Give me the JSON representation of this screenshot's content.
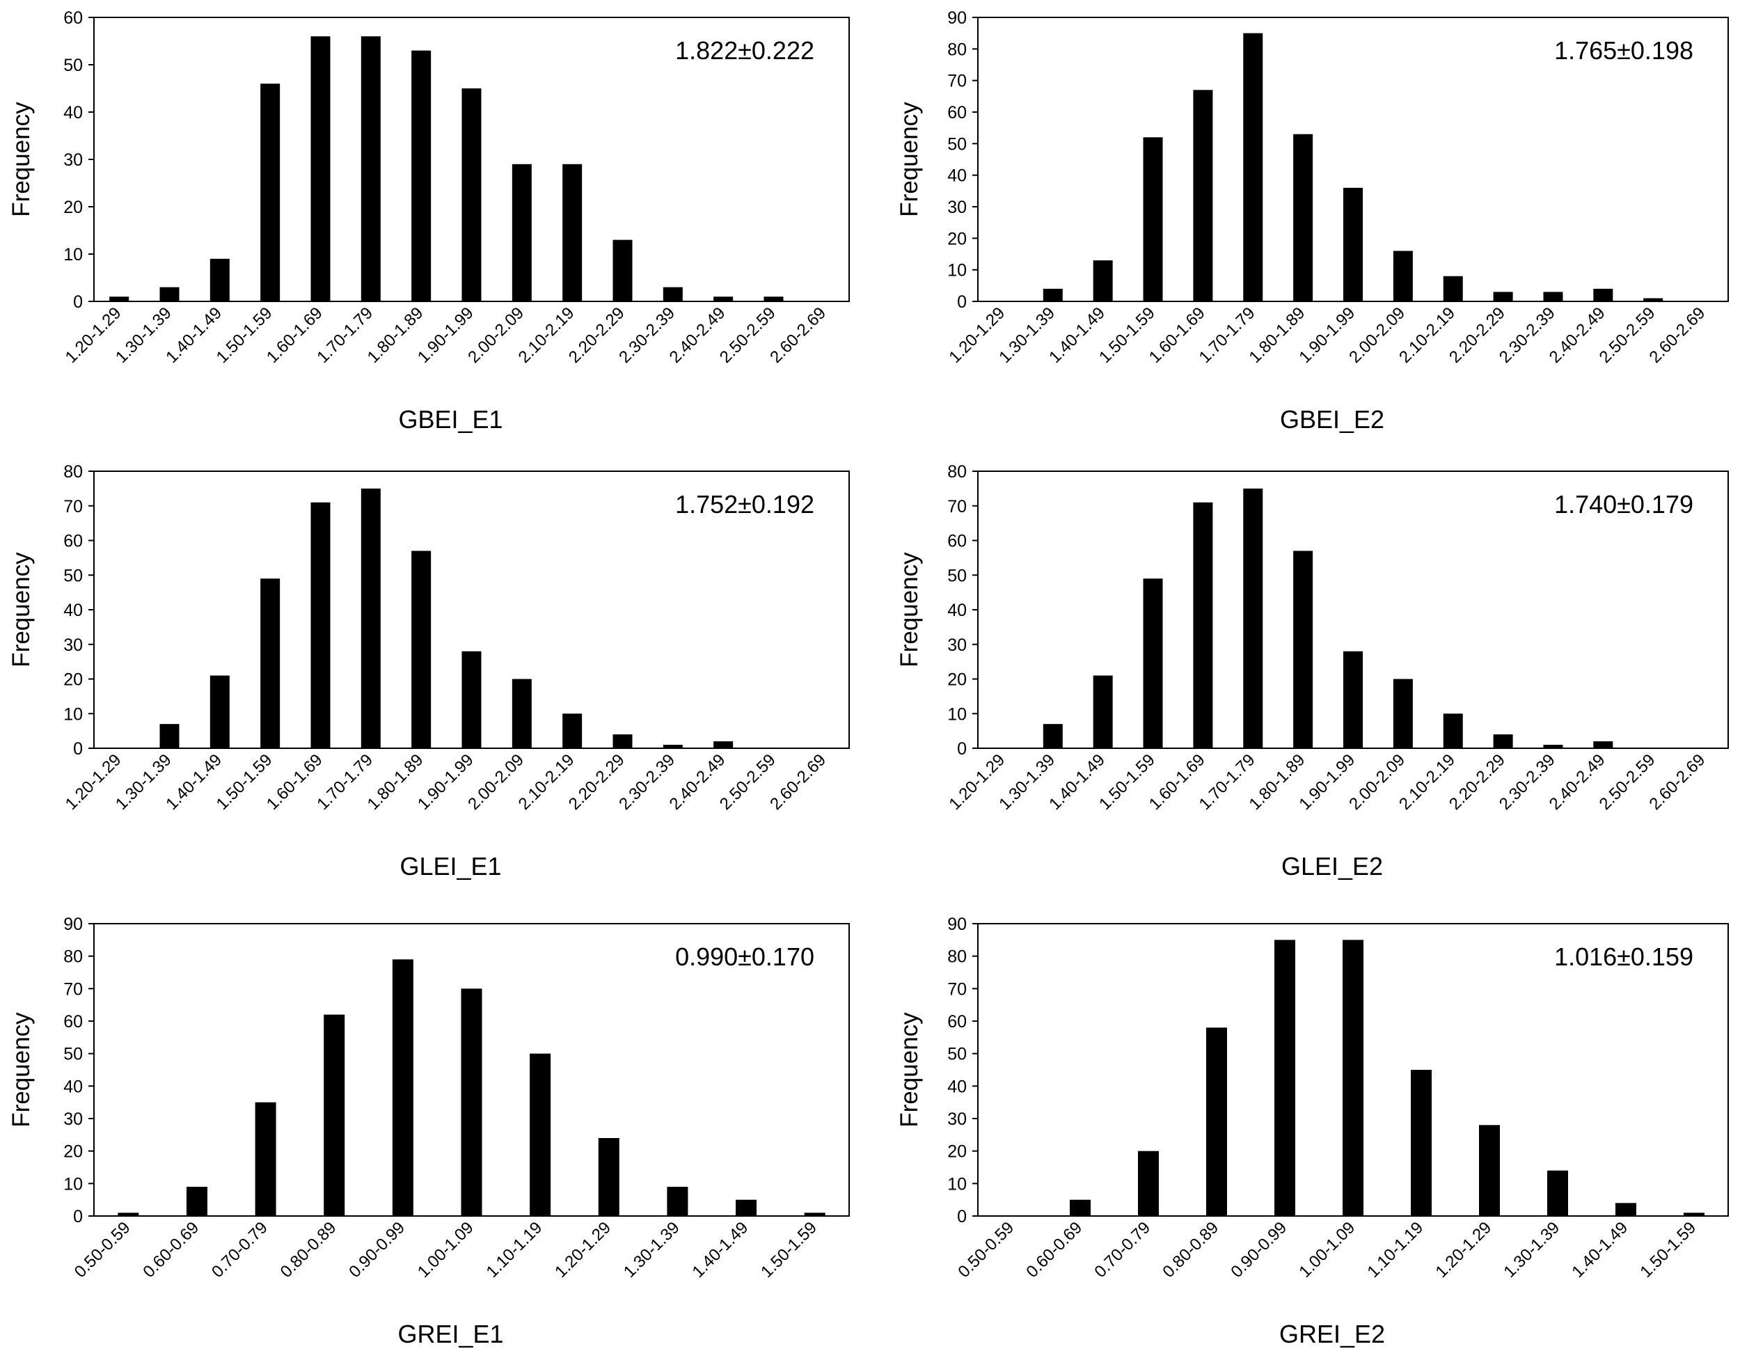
{
  "chart_data": [
    {
      "id": "gbei-e1",
      "type": "bar",
      "xlabel": "GBEI_E1",
      "ylabel": "Frequency",
      "annotation": "1.822±0.222",
      "ylim": [
        0,
        60
      ],
      "yticks": [
        0,
        10,
        20,
        30,
        40,
        50,
        60
      ],
      "categories": [
        "1.20-1.29",
        "1.30-1.39",
        "1.40-1.49",
        "1.50-1.59",
        "1.60-1.69",
        "1.70-1.79",
        "1.80-1.89",
        "1.90-1.99",
        "2.00-2.09",
        "2.10-2.19",
        "2.20-2.29",
        "2.30-2.39",
        "2.40-2.49",
        "2.50-2.59",
        "2.60-2.69"
      ],
      "values": [
        1,
        3,
        9,
        46,
        56,
        56,
        53,
        45,
        29,
        29,
        13,
        3,
        1,
        1,
        0
      ]
    },
    {
      "id": "gbei-e2",
      "type": "bar",
      "xlabel": "GBEI_E2",
      "ylabel": "Frequency",
      "annotation": "1.765±0.198",
      "ylim": [
        0,
        90
      ],
      "yticks": [
        0,
        10,
        20,
        30,
        40,
        50,
        60,
        70,
        80,
        90
      ],
      "categories": [
        "1.20-1.29",
        "1.30-1.39",
        "1.40-1.49",
        "1.50-1.59",
        "1.60-1.69",
        "1.70-1.79",
        "1.80-1.89",
        "1.90-1.99",
        "2.00-2.09",
        "2.10-2.19",
        "2.20-2.29",
        "2.30-2.39",
        "2.40-2.49",
        "2.50-2.59",
        "2.60-2.69"
      ],
      "values": [
        0,
        4,
        13,
        52,
        67,
        85,
        53,
        36,
        16,
        8,
        3,
        3,
        4,
        1,
        0
      ]
    },
    {
      "id": "glei-e1",
      "type": "bar",
      "xlabel": "GLEI_E1",
      "ylabel": "Frequency",
      "annotation": "1.752±0.192",
      "ylim": [
        0,
        80
      ],
      "yticks": [
        0,
        10,
        20,
        30,
        40,
        50,
        60,
        70,
        80
      ],
      "categories": [
        "1.20-1.29",
        "1.30-1.39",
        "1.40-1.49",
        "1.50-1.59",
        "1.60-1.69",
        "1.70-1.79",
        "1.80-1.89",
        "1.90-1.99",
        "2.00-2.09",
        "2.10-2.19",
        "2.20-2.29",
        "2.30-2.39",
        "2.40-2.49",
        "2.50-2.59",
        "2.60-2.69"
      ],
      "values": [
        0,
        7,
        21,
        49,
        71,
        75,
        57,
        28,
        20,
        10,
        4,
        1,
        2,
        0,
        0
      ]
    },
    {
      "id": "glei-e2",
      "type": "bar",
      "xlabel": "GLEI_E2",
      "ylabel": "Frequency",
      "annotation": "1.740±0.179",
      "ylim": [
        0,
        80
      ],
      "yticks": [
        0,
        10,
        20,
        30,
        40,
        50,
        60,
        70,
        80
      ],
      "categories": [
        "1.20-1.29",
        "1.30-1.39",
        "1.40-1.49",
        "1.50-1.59",
        "1.60-1.69",
        "1.70-1.79",
        "1.80-1.89",
        "1.90-1.99",
        "2.00-2.09",
        "2.10-2.19",
        "2.20-2.29",
        "2.30-2.39",
        "2.40-2.49",
        "2.50-2.59",
        "2.60-2.69"
      ],
      "values": [
        0,
        7,
        21,
        49,
        71,
        75,
        57,
        28,
        20,
        10,
        4,
        1,
        2,
        0,
        0
      ]
    },
    {
      "id": "grei-e1",
      "type": "bar",
      "xlabel": "GREI_E1",
      "ylabel": "Frequency",
      "annotation": "0.990±0.170",
      "ylim": [
        0,
        90
      ],
      "yticks": [
        0,
        10,
        20,
        30,
        40,
        50,
        60,
        70,
        80,
        90
      ],
      "categories": [
        "0.50-0.59",
        "0.60-0.69",
        "0.70-0.79",
        "0.80-0.89",
        "0.90-0.99",
        "1.00-1.09",
        "1.10-1.19",
        "1.20-1.29",
        "1.30-1.39",
        "1.40-1.49",
        "1.50-1.59"
      ],
      "values": [
        1,
        9,
        35,
        62,
        79,
        70,
        50,
        24,
        9,
        5,
        1
      ]
    },
    {
      "id": "grei-e2",
      "type": "bar",
      "xlabel": "GREI_E2",
      "ylabel": "Frequency",
      "annotation": "1.016±0.159",
      "ylim": [
        0,
        90
      ],
      "yticks": [
        0,
        10,
        20,
        30,
        40,
        50,
        60,
        70,
        80,
        90
      ],
      "categories": [
        "0.50-0.59",
        "0.60-0.69",
        "0.70-0.79",
        "0.80-0.89",
        "0.90-0.99",
        "1.00-1.09",
        "1.10-1.19",
        "1.20-1.29",
        "1.30-1.39",
        "1.40-1.49",
        "1.50-1.59"
      ],
      "values": [
        0,
        5,
        20,
        58,
        85,
        85,
        45,
        28,
        14,
        4,
        1
      ]
    }
  ]
}
